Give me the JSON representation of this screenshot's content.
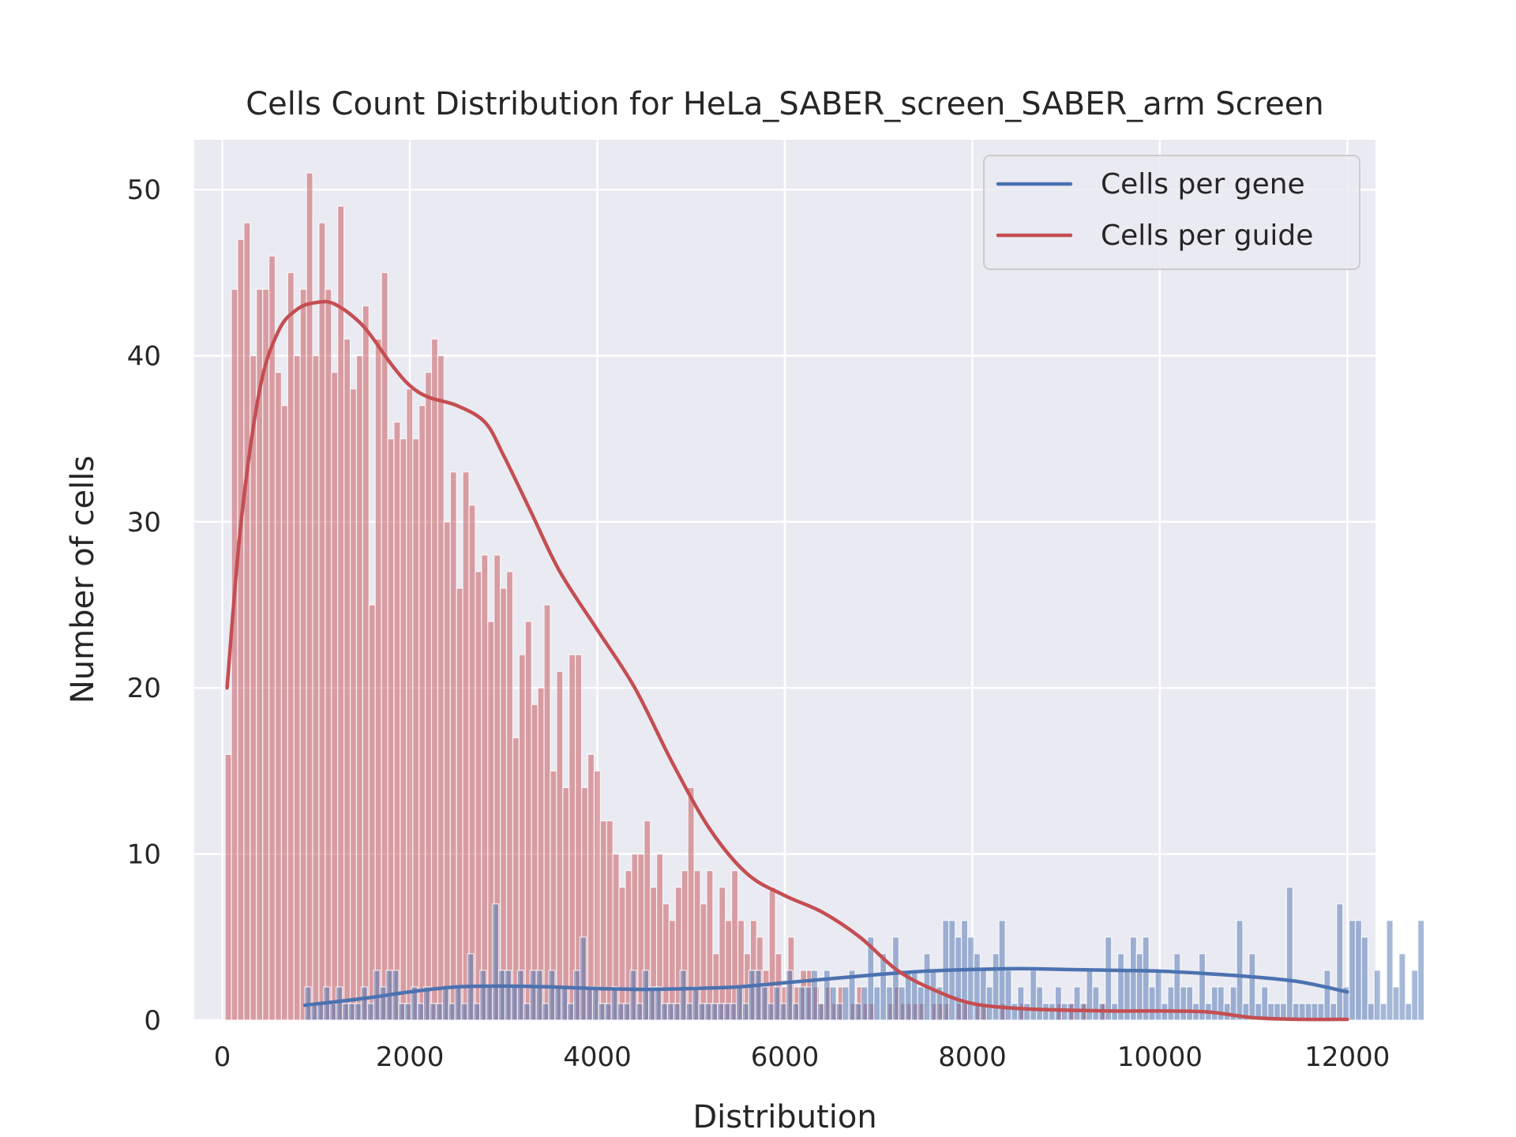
{
  "chart_data": {
    "type": "histogram",
    "title": "Cells Count Distribution for HeLa_SABER_screen_SABER_arm Screen",
    "xlabel": "Distribution",
    "ylabel": "Number of cells",
    "xlim": [
      -300,
      12300
    ],
    "ylim": [
      0,
      53
    ],
    "xticks": [
      0,
      2000,
      4000,
      6000,
      8000,
      10000,
      12000
    ],
    "yticks": [
      0,
      10,
      20,
      30,
      40,
      50
    ],
    "grid": true,
    "legend_position": "top-right",
    "colors": {
      "background": "#eaeaf2",
      "grid": "#ffffff",
      "gene": "#4c72b0",
      "guide": "#c44e52"
    },
    "series": [
      {
        "name": "Cells per guide",
        "kind": "histogram",
        "color": "#c44e52",
        "bin_start": 30,
        "bin_width": 66.7,
        "counts": [
          16,
          44,
          47,
          48,
          40,
          44,
          44,
          46,
          39,
          37,
          45,
          40,
          44,
          51,
          40,
          48,
          44,
          39,
          49,
          41,
          38,
          40,
          43,
          25,
          41,
          45,
          35,
          36,
          35,
          38,
          35,
          37,
          39,
          41,
          40,
          30,
          33,
          26,
          33,
          31,
          27,
          28,
          24,
          28,
          26,
          27,
          17,
          22,
          24,
          19,
          20,
          25,
          15,
          21,
          14,
          22,
          22,
          14,
          16,
          15,
          12,
          12,
          10,
          8,
          9,
          10,
          10,
          12,
          8,
          10,
          7,
          6,
          8,
          9,
          14,
          9,
          7,
          9,
          4,
          8,
          6,
          9,
          6,
          4,
          6,
          5,
          3,
          8,
          4,
          2,
          5,
          2,
          3,
          3,
          2,
          1,
          2,
          1,
          2,
          0,
          1,
          2,
          1,
          1,
          0,
          0,
          1,
          2,
          1,
          1,
          1,
          1,
          0,
          1,
          1,
          1,
          0,
          1,
          1,
          0,
          1,
          1,
          0,
          0,
          1,
          0,
          0,
          1,
          0,
          0,
          0,
          0,
          0,
          1,
          0,
          1,
          0,
          1,
          0,
          0,
          1,
          0,
          0,
          0,
          0,
          0,
          0,
          0,
          0,
          0,
          0,
          0,
          0,
          0,
          0,
          0,
          0,
          0,
          0,
          0,
          0,
          0,
          0,
          0,
          0,
          0,
          0
        ]
      },
      {
        "name": "Cells per gene",
        "kind": "histogram",
        "color": "#4c72b0",
        "bin_start": 880,
        "bin_width": 66.7,
        "counts": [
          2,
          1,
          1,
          2,
          1,
          2,
          1,
          1,
          1,
          2,
          1,
          3,
          2,
          3,
          3,
          1,
          1,
          2,
          1,
          2,
          1,
          1,
          2,
          1,
          2,
          1,
          4,
          1,
          3,
          2,
          7,
          3,
          3,
          2,
          3,
          1,
          3,
          3,
          1,
          3,
          2,
          2,
          1,
          3,
          5,
          2,
          2,
          1,
          1,
          2,
          1,
          1,
          3,
          1,
          3,
          2,
          2,
          1,
          1,
          1,
          3,
          1,
          2,
          1,
          1,
          1,
          1,
          1,
          1,
          2,
          1,
          3,
          3,
          2,
          1,
          2,
          1,
          3,
          1,
          2,
          2,
          3,
          1,
          3,
          2,
          1,
          2,
          3,
          1,
          2,
          5,
          2,
          4,
          2,
          5,
          2,
          3,
          3,
          2,
          4,
          3,
          2,
          6,
          6,
          5,
          6,
          5,
          4,
          3,
          2,
          4,
          6,
          3,
          1,
          2,
          1,
          3,
          2,
          1,
          1,
          2,
          1,
          1,
          2,
          1,
          3,
          2,
          1,
          5,
          1,
          4,
          3,
          5,
          4,
          5,
          2,
          3,
          1,
          2,
          4,
          2,
          2,
          1,
          4,
          1,
          2,
          2,
          1,
          2,
          6,
          1,
          4,
          1,
          2,
          1,
          1,
          1,
          8,
          1,
          1,
          1,
          1,
          1,
          3,
          1,
          7,
          2,
          6,
          6,
          5,
          1,
          3,
          1,
          6,
          2,
          4,
          1,
          3,
          6
        ]
      }
    ],
    "kde": [
      {
        "name": "Cells per gene",
        "color": "#4c72b0",
        "points": [
          [
            880,
            0.9
          ],
          [
            1500,
            1.3
          ],
          [
            2000,
            1.7
          ],
          [
            2500,
            2.0
          ],
          [
            3000,
            2.05
          ],
          [
            3500,
            2.0
          ],
          [
            4000,
            1.9
          ],
          [
            4500,
            1.85
          ],
          [
            5000,
            1.9
          ],
          [
            5500,
            2.0
          ],
          [
            6000,
            2.25
          ],
          [
            6500,
            2.5
          ],
          [
            7000,
            2.75
          ],
          [
            7500,
            2.95
          ],
          [
            8000,
            3.05
          ],
          [
            8500,
            3.1
          ],
          [
            9000,
            3.05
          ],
          [
            9500,
            3.0
          ],
          [
            10000,
            2.95
          ],
          [
            10500,
            2.8
          ],
          [
            11000,
            2.6
          ],
          [
            11500,
            2.3
          ],
          [
            12000,
            1.7
          ]
        ]
      },
      {
        "name": "Cells per guide",
        "color": "#c44e52",
        "points": [
          [
            50,
            20
          ],
          [
            200,
            30
          ],
          [
            400,
            38
          ],
          [
            600,
            41.5
          ],
          [
            800,
            42.8
          ],
          [
            1000,
            43.2
          ],
          [
            1200,
            43.1
          ],
          [
            1500,
            41.8
          ],
          [
            1800,
            39.5
          ],
          [
            2000,
            38.2
          ],
          [
            2200,
            37.5
          ],
          [
            2500,
            37.0
          ],
          [
            2800,
            36.0
          ],
          [
            3000,
            34.0
          ],
          [
            3300,
            30.5
          ],
          [
            3600,
            27.0
          ],
          [
            4000,
            23.5
          ],
          [
            4400,
            20.0
          ],
          [
            4800,
            15.5
          ],
          [
            5200,
            11.5
          ],
          [
            5600,
            8.8
          ],
          [
            6000,
            7.5
          ],
          [
            6400,
            6.5
          ],
          [
            6800,
            5.0
          ],
          [
            7200,
            3.0
          ],
          [
            7600,
            1.8
          ],
          [
            8000,
            1.0
          ],
          [
            8500,
            0.7
          ],
          [
            9000,
            0.6
          ],
          [
            9500,
            0.55
          ],
          [
            10000,
            0.55
          ],
          [
            10500,
            0.5
          ],
          [
            11000,
            0.15
          ],
          [
            11500,
            0.05
          ],
          [
            12000,
            0.05
          ]
        ]
      }
    ]
  }
}
